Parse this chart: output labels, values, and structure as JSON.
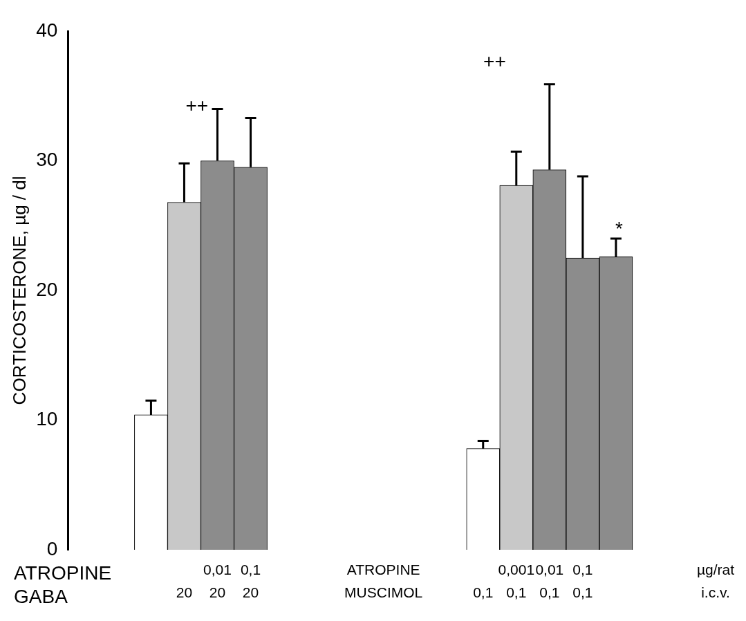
{
  "chart_data": {
    "type": "bar",
    "ylabel": "CORTICOSTERONE, µg / dl",
    "categories": [
      null,
      null,
      null,
      "\n20",
      "0,01\n20",
      "0,1\n20",
      null,
      null,
      null,
      "ATROPINE\nMUSCIMOL",
      null,
      null,
      "\n0,1",
      "0,001\n0,1",
      "0,01\n0,1",
      "0,1\n0,1",
      null,
      null,
      null,
      "µg/rat\ni.c.v."
    ],
    "values": [
      null,
      null,
      10.4,
      26.8,
      30,
      29.5,
      null,
      null,
      null,
      null,
      null,
      null,
      7.8,
      28.1,
      29.3,
      22.5,
      22.6,
      null,
      null,
      null
    ],
    "colors": [
      "#ffffff",
      "#ffffff",
      "#ffffff",
      "#c8c8c8",
      "#8c8c8c",
      "#8c8c8c",
      "#ffffff",
      "#ffffff",
      "#ffffff",
      "#ffffff",
      "#ffffff",
      "#ffffff",
      "#ffffff",
      "#c8c8c8",
      "#8c8c8c",
      "#8c8c8c",
      "#8c8c8c",
      "#ffffff",
      "#ffffff",
      "#ffffff"
    ],
    "errors": [
      null,
      null,
      [
        10.4,
        11.5
      ],
      [
        26.8,
        29.8
      ],
      [
        30,
        34
      ],
      [
        29.5,
        33.3
      ],
      null,
      null,
      null,
      null,
      null,
      null,
      [
        7.8,
        8.4
      ],
      [
        28.1,
        30.7
      ],
      [
        29.3,
        35.9
      ],
      [
        22.5,
        28.8
      ],
      [
        22.6,
        24
      ],
      null,
      null,
      null
    ],
    "ylim": [
      0,
      40
    ],
    "yticks": [
      0,
      10,
      20,
      30,
      40
    ],
    "grid": false,
    "legend": false,
    "annotations": [
      "ATROPINE\nGABA",
      "++",
      "++",
      "*"
    ]
  }
}
